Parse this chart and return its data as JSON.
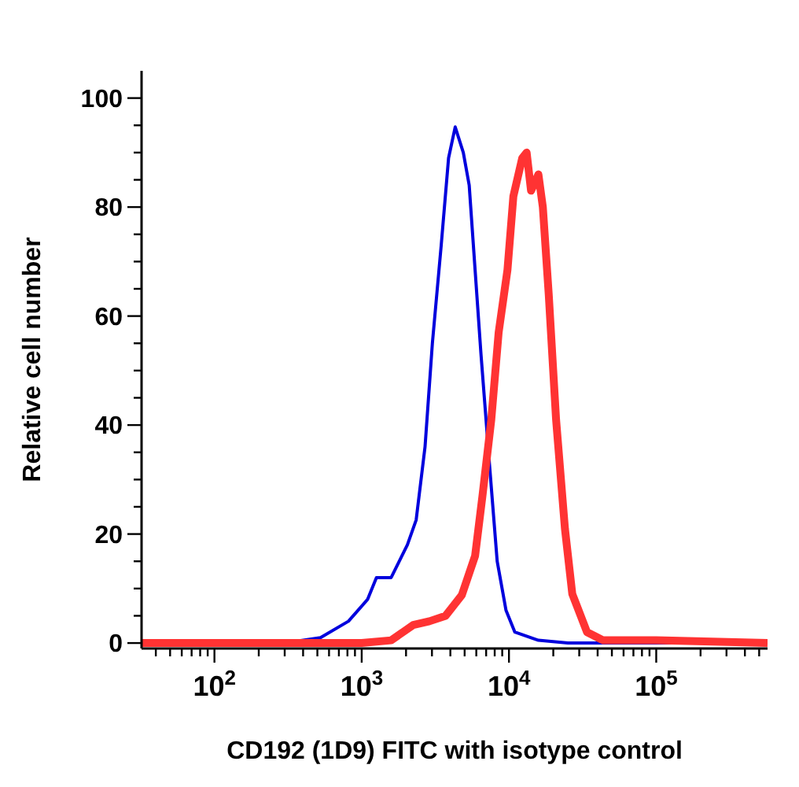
{
  "chart_data": {
    "type": "line",
    "xlabel": "CD192 (1D9) FITC with isotype control",
    "ylabel": "Relative cell number",
    "log": "x",
    "marker": "none",
    "line_style": "solid",
    "xlim": [
      32,
      570000
    ],
    "xticks": [
      {
        "value": 40,
        "label": null
      },
      {
        "value": 50,
        "label": null
      },
      {
        "value": 60,
        "label": null
      },
      {
        "value": 70,
        "label": null
      },
      {
        "value": 80,
        "label": null
      },
      {
        "value": 90,
        "label": null
      },
      {
        "value": 100,
        "label": "10$^{2}$"
      },
      {
        "value": 200,
        "label": null
      },
      {
        "value": 300,
        "label": null
      },
      {
        "value": 400,
        "label": null
      },
      {
        "value": 500,
        "label": null
      },
      {
        "value": 600,
        "label": null
      },
      {
        "value": 700,
        "label": null
      },
      {
        "value": 800,
        "label": null
      },
      {
        "value": 900,
        "label": null
      },
      {
        "value": 1000,
        "label": "10$^{3}$"
      },
      {
        "value": 2000,
        "label": null
      },
      {
        "value": 3000,
        "label": null
      },
      {
        "value": 4000,
        "label": null
      },
      {
        "value": 5000,
        "label": null
      },
      {
        "value": 6000,
        "label": null
      },
      {
        "value": 7000,
        "label": null
      },
      {
        "value": 8000,
        "label": null
      },
      {
        "value": 9000,
        "label": null
      },
      {
        "value": 10000,
        "label": "10$^{4}$"
      },
      {
        "value": 20000,
        "label": null
      },
      {
        "value": 30000,
        "label": null
      },
      {
        "value": 40000,
        "label": null
      },
      {
        "value": 50000,
        "label": null
      },
      {
        "value": 60000,
        "label": null
      },
      {
        "value": 70000,
        "label": null
      },
      {
        "value": 80000,
        "label": null
      },
      {
        "value": 90000,
        "label": null
      },
      {
        "value": 100000,
        "label": "10$^{5}$"
      },
      {
        "value": 200000,
        "label": null
      },
      {
        "value": 300000,
        "label": null
      },
      {
        "value": 400000,
        "label": null
      },
      {
        "value": 500000,
        "label": null
      }
    ],
    "ylim": [
      -1,
      105
    ],
    "yticks": [
      0,
      {
        "value": 5,
        "label": null
      },
      {
        "value": 10,
        "label": null
      },
      {
        "value": 15,
        "label": null
      },
      20,
      {
        "value": 25,
        "label": null
      },
      {
        "value": 30,
        "label": null
      },
      {
        "value": 35,
        "label": null
      },
      40,
      {
        "value": 45,
        "label": null
      },
      {
        "value": 50,
        "label": null
      },
      {
        "value": 55,
        "label": null
      },
      60,
      {
        "value": 65,
        "label": null
      },
      {
        "value": 70,
        "label": null
      },
      {
        "value": 75,
        "label": null
      },
      80,
      {
        "value": 85,
        "label": null
      },
      {
        "value": 90,
        "label": null
      },
      {
        "value": 95,
        "label": null
      },
      100
    ],
    "series": [
      {
        "color": "#0000dd",
        "x": [
          32,
          300,
          525,
          813,
          1096,
          1259,
          1585,
          2042,
          2344,
          2692,
          3020,
          3467,
          3890,
          4315,
          4898,
          5370,
          5888,
          6457,
          7413,
          8318,
          9550,
          10965,
          15849,
          25119,
          570000
        ],
        "values": [
          0,
          0,
          1,
          4,
          8,
          12,
          12,
          18,
          22.6,
          36,
          55,
          73,
          89,
          94.7,
          90,
          84,
          68.5,
          53,
          32,
          15,
          6,
          2,
          0.5,
          0,
          0
        ]
      },
      {
        "color": "#ff3333",
        "x": [
          32,
          1000,
          1585,
          2239,
          2884,
          3715,
          4786,
          5888,
          6607,
          7586,
          8511,
          9772,
          10715,
          12303,
          13183,
          14125,
          15849,
          16982,
          18621,
          20893,
          23988,
          26915,
          33884,
          43652,
          100000,
          570000
        ],
        "values": [
          0,
          0,
          0.5,
          3.3,
          4,
          5,
          8.8,
          16,
          27,
          41,
          57,
          68.5,
          82,
          89,
          90,
          83,
          86,
          80,
          64,
          41,
          21,
          9,
          2,
          0.5,
          0.5,
          0
        ]
      }
    ]
  }
}
